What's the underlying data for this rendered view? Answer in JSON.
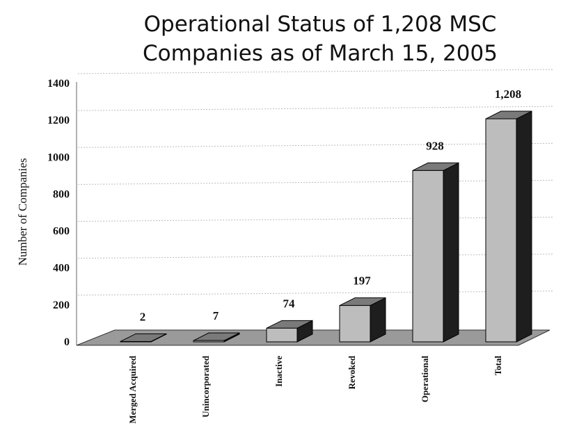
{
  "chart_data": {
    "type": "bar",
    "title": "Operational Status of 1,208 MSC Companies as of March 15, 2005",
    "y_label": "Number of Companies",
    "categories": [
      "Merged Acquired",
      "Unincorporated",
      "Inactive",
      "Revoked",
      "Operational",
      "Total"
    ],
    "values": [
      2,
      7,
      74,
      197,
      928,
      1208
    ],
    "value_labels": [
      "2",
      "7",
      "74",
      "197",
      "928",
      "1,208"
    ],
    "color": "#bdbdbd",
    "ylim": [
      0,
      1400
    ],
    "yticks": [
      0,
      200,
      400,
      600,
      800,
      1000,
      1200,
      1400
    ],
    "grid": true
  }
}
